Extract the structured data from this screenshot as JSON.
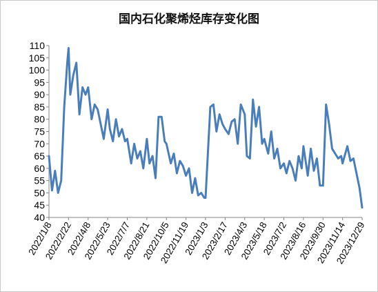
{
  "chart_data": {
    "type": "line",
    "title": "国内石化聚烯烃库存变化图",
    "xlabel": "",
    "ylabel": "",
    "ylim": [
      40,
      110
    ],
    "yticks": [
      40,
      45,
      50,
      55,
      60,
      65,
      70,
      75,
      80,
      85,
      90,
      95,
      100,
      105,
      110
    ],
    "xticks": [
      "2022/1/8",
      "2022/2/22",
      "2022/4/8",
      "2022/5/23",
      "2022/7/7",
      "2022/8/21",
      "2022/10/5",
      "2022/11/19",
      "2023/1/3",
      "2023/2/17",
      "2023/4/3",
      "2023/5/18",
      "2023/7/2",
      "2023/8/16",
      "2023/9/30",
      "2023/11/14",
      "2023/12/29"
    ],
    "grid": false,
    "legend": "none",
    "line_color": "#4a7ebb",
    "series": [
      {
        "x": [
          "2022/1/8",
          "2022/1/15",
          "2022/1/22",
          "2022/1/29",
          "2022/2/5",
          "2022/2/12",
          "2022/2/19",
          "2022/2/22",
          "2022/2/26",
          "2022/3/5",
          "2022/3/12",
          "2022/3/19",
          "2022/3/26",
          "2022/4/2",
          "2022/4/8",
          "2022/4/16",
          "2022/4/23",
          "2022/4/30",
          "2022/5/7",
          "2022/5/14",
          "2022/5/23",
          "2022/5/28",
          "2022/6/4",
          "2022/6/11",
          "2022/6/18",
          "2022/6/25",
          "2022/7/2",
          "2022/7/7",
          "2022/7/16",
          "2022/7/23",
          "2022/7/30",
          "2022/8/6",
          "2022/8/13",
          "2022/8/21",
          "2022/8/27",
          "2022/9/3",
          "2022/9/10",
          "2022/9/17",
          "2022/9/24",
          "2022/10/1",
          "2022/10/5",
          "2022/10/15",
          "2022/10/22",
          "2022/10/29",
          "2022/11/5",
          "2022/11/12",
          "2022/11/19",
          "2022/11/26",
          "2022/12/3",
          "2022/12/10",
          "2022/12/17",
          "2022/12/24",
          "2022/12/31",
          "2023/1/3",
          "2023/1/14",
          "2023/1/21",
          "2023/1/28",
          "2023/2/4",
          "2023/2/11",
          "2023/2/17",
          "2023/2/25",
          "2023/3/4",
          "2023/3/11",
          "2023/3/18",
          "2023/3/25",
          "2023/4/3",
          "2023/4/8",
          "2023/4/15",
          "2023/4/22",
          "2023/4/29",
          "2023/5/6",
          "2023/5/13",
          "2023/5/18",
          "2023/5/27",
          "2023/6/3",
          "2023/6/10",
          "2023/6/17",
          "2023/6/24",
          "2023/7/2",
          "2023/7/8",
          "2023/7/15",
          "2023/7/22",
          "2023/7/29",
          "2023/8/5",
          "2023/8/12",
          "2023/8/16",
          "2023/8/26",
          "2023/9/2",
          "2023/9/9",
          "2023/9/16",
          "2023/9/23",
          "2023/9/30",
          "2023/10/7",
          "2023/10/14",
          "2023/10/21",
          "2023/10/28",
          "2023/11/4",
          "2023/11/11",
          "2023/11/14",
          "2023/11/25",
          "2023/12/2",
          "2023/12/9",
          "2023/12/16",
          "2023/12/23",
          "2023/12/29"
        ],
        "values": [
          65,
          51,
          59,
          50,
          55,
          85,
          103,
          109,
          90,
          98,
          103,
          82,
          93,
          90,
          93,
          80,
          86,
          84,
          78,
          72,
          84,
          76,
          71,
          80,
          73,
          76,
          71,
          72,
          62,
          70,
          64,
          67,
          60,
          72,
          62,
          65,
          56,
          81,
          81,
          71,
          70,
          62,
          66,
          58,
          63,
          61,
          57,
          60,
          50,
          56,
          49,
          50,
          48,
          48,
          85,
          86,
          75,
          82,
          78,
          76,
          74,
          79,
          80,
          70,
          86,
          82,
          65,
          64,
          88,
          77,
          85,
          70,
          72,
          66,
          75,
          64,
          68,
          60,
          62,
          58,
          63,
          60,
          55,
          65,
          60,
          69,
          57,
          68,
          59,
          64,
          53,
          53,
          86,
          78,
          68,
          66,
          64,
          65,
          62,
          69,
          63,
          64,
          58,
          52,
          44
        ]
      }
    ]
  }
}
